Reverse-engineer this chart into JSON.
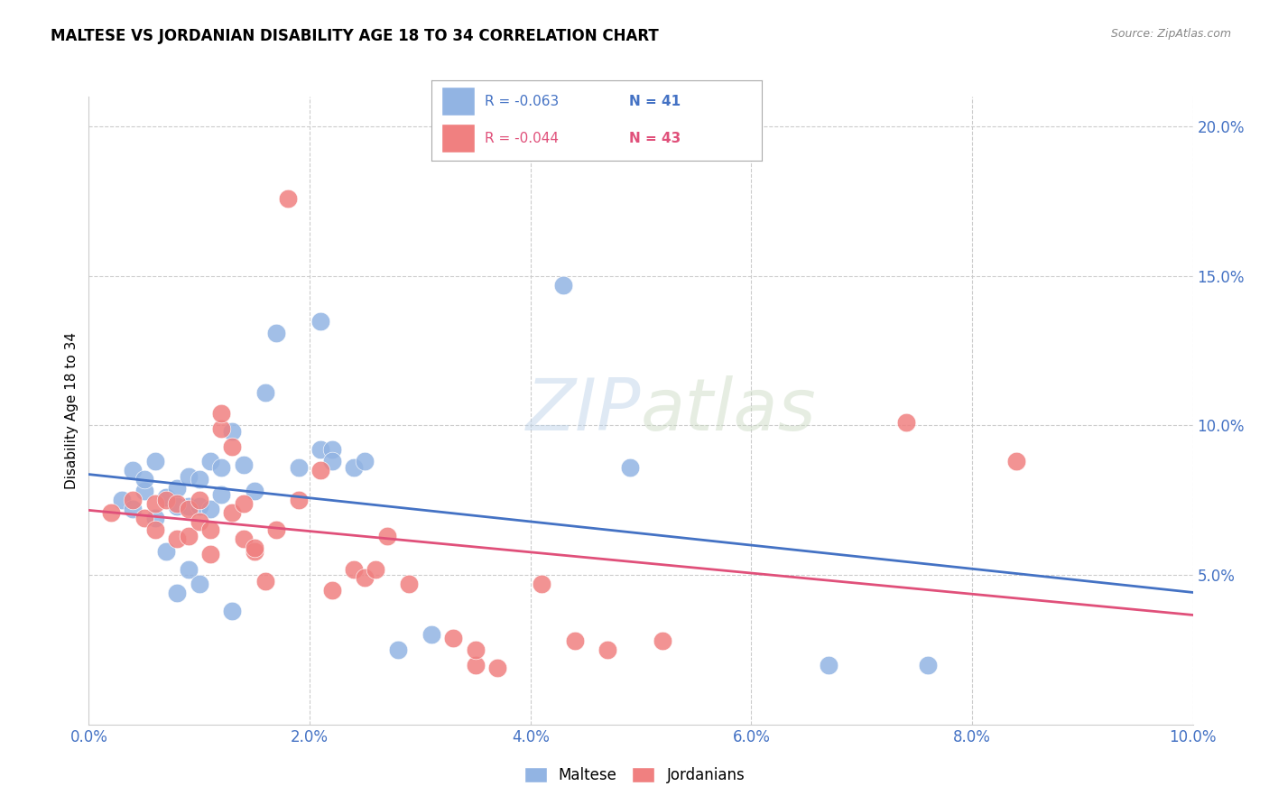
{
  "title": "MALTESE VS JORDANIAN DISABILITY AGE 18 TO 34 CORRELATION CHART",
  "source": "Source: ZipAtlas.com",
  "ylabel_label": "Disability Age 18 to 34",
  "xlim": [
    0.0,
    0.1
  ],
  "ylim": [
    0.0,
    0.21
  ],
  "x_ticks": [
    0.0,
    0.02,
    0.04,
    0.06,
    0.08,
    0.1
  ],
  "y_ticks_right": [
    0.05,
    0.1,
    0.15,
    0.2
  ],
  "legend_r_maltese": "-0.063",
  "legend_n_maltese": "41",
  "legend_r_jordanian": "-0.044",
  "legend_n_jordanian": "43",
  "maltese_color": "#92b4e3",
  "jordanian_color": "#f08080",
  "maltese_line_color": "#4472c4",
  "jordanian_line_color": "#e0507a",
  "axis_color": "#4472c4",
  "watermark_zip": "ZIP",
  "watermark_atlas": "atlas",
  "maltese_x": [
    0.003,
    0.004,
    0.004,
    0.005,
    0.005,
    0.006,
    0.006,
    0.007,
    0.007,
    0.008,
    0.008,
    0.008,
    0.009,
    0.009,
    0.009,
    0.01,
    0.01,
    0.01,
    0.011,
    0.011,
    0.012,
    0.012,
    0.013,
    0.013,
    0.014,
    0.015,
    0.016,
    0.017,
    0.019,
    0.021,
    0.021,
    0.022,
    0.022,
    0.024,
    0.025,
    0.028,
    0.031,
    0.043,
    0.049,
    0.067,
    0.076
  ],
  "maltese_y": [
    0.075,
    0.085,
    0.072,
    0.078,
    0.082,
    0.088,
    0.069,
    0.076,
    0.058,
    0.079,
    0.073,
    0.044,
    0.083,
    0.073,
    0.052,
    0.082,
    0.073,
    0.047,
    0.072,
    0.088,
    0.077,
    0.086,
    0.098,
    0.038,
    0.087,
    0.078,
    0.111,
    0.131,
    0.086,
    0.092,
    0.135,
    0.092,
    0.088,
    0.086,
    0.088,
    0.025,
    0.03,
    0.147,
    0.086,
    0.02,
    0.02
  ],
  "jordanian_x": [
    0.002,
    0.004,
    0.005,
    0.006,
    0.006,
    0.007,
    0.008,
    0.008,
    0.009,
    0.009,
    0.01,
    0.01,
    0.011,
    0.011,
    0.012,
    0.012,
    0.013,
    0.013,
    0.014,
    0.014,
    0.015,
    0.015,
    0.016,
    0.017,
    0.018,
    0.019,
    0.021,
    0.022,
    0.024,
    0.025,
    0.026,
    0.027,
    0.029,
    0.033,
    0.035,
    0.035,
    0.037,
    0.041,
    0.044,
    0.047,
    0.052,
    0.074,
    0.084
  ],
  "jordanian_y": [
    0.071,
    0.075,
    0.069,
    0.074,
    0.065,
    0.075,
    0.062,
    0.074,
    0.072,
    0.063,
    0.068,
    0.075,
    0.057,
    0.065,
    0.099,
    0.104,
    0.093,
    0.071,
    0.062,
    0.074,
    0.058,
    0.059,
    0.048,
    0.065,
    0.176,
    0.075,
    0.085,
    0.045,
    0.052,
    0.049,
    0.052,
    0.063,
    0.047,
    0.029,
    0.02,
    0.025,
    0.019,
    0.047,
    0.028,
    0.025,
    0.028,
    0.101,
    0.088
  ]
}
